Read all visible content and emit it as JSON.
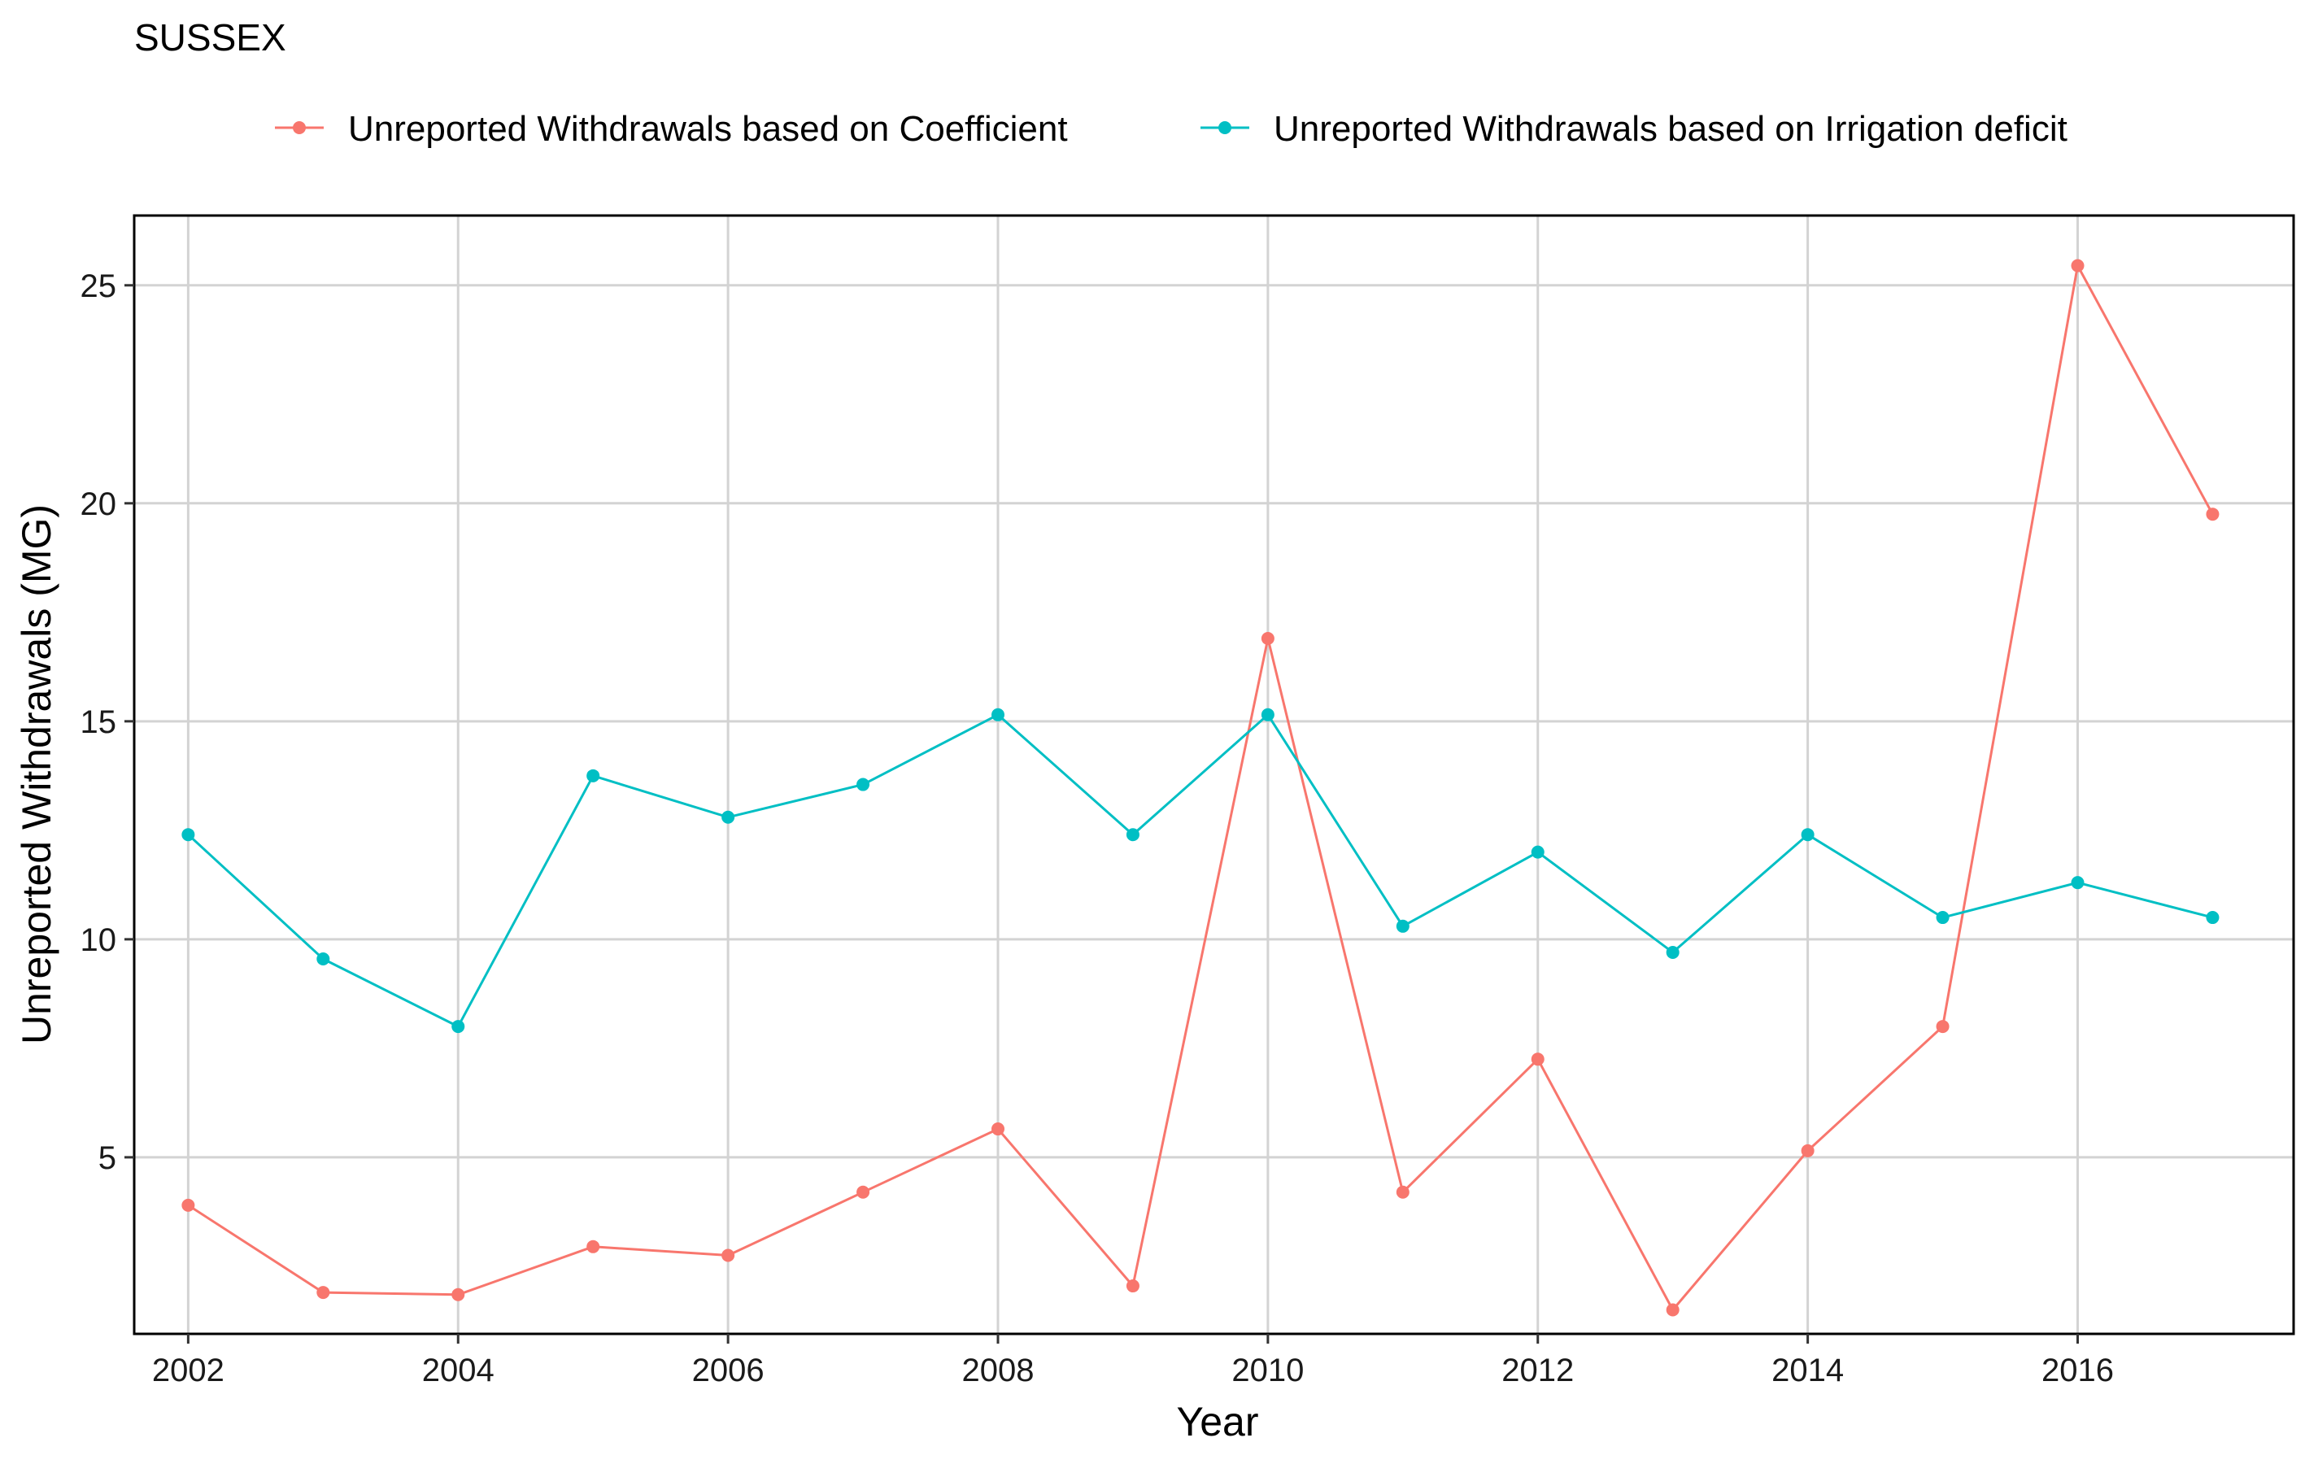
{
  "chart_data": {
    "type": "line",
    "title": "SUSSEX",
    "xlabel": "Year",
    "ylabel": "Unreported Withdrawals (MG)",
    "x": [
      2002,
      2003,
      2004,
      2005,
      2006,
      2007,
      2008,
      2009,
      2010,
      2011,
      2012,
      2013,
      2014,
      2015,
      2016,
      2017
    ],
    "xlim": [
      2001.6,
      2017.6
    ],
    "ylim": [
      0.95,
      26.6
    ],
    "x_ticks": [
      "2002",
      "2004",
      "2006",
      "2008",
      "2010",
      "2012",
      "2014",
      "2016"
    ],
    "y_ticks": [
      "5",
      "10",
      "15",
      "20",
      "25"
    ],
    "grid": true,
    "legend_position": "top",
    "series": [
      {
        "name": "Unreported Withdrawals based on Coefficient",
        "color": "#F8766D",
        "values": [
          3.9,
          1.9,
          1.85,
          2.95,
          2.75,
          4.2,
          5.65,
          2.05,
          16.9,
          4.2,
          7.25,
          1.5,
          5.15,
          8.0,
          25.45,
          19.75
        ]
      },
      {
        "name": "Unreported Withdrawals based on Irrigation deficit",
        "color": "#00BFC4",
        "values": [
          12.4,
          9.55,
          8.0,
          13.75,
          12.8,
          13.55,
          15.15,
          12.4,
          15.15,
          10.3,
          12.0,
          9.7,
          12.4,
          10.5,
          11.3,
          10.5
        ]
      }
    ]
  }
}
